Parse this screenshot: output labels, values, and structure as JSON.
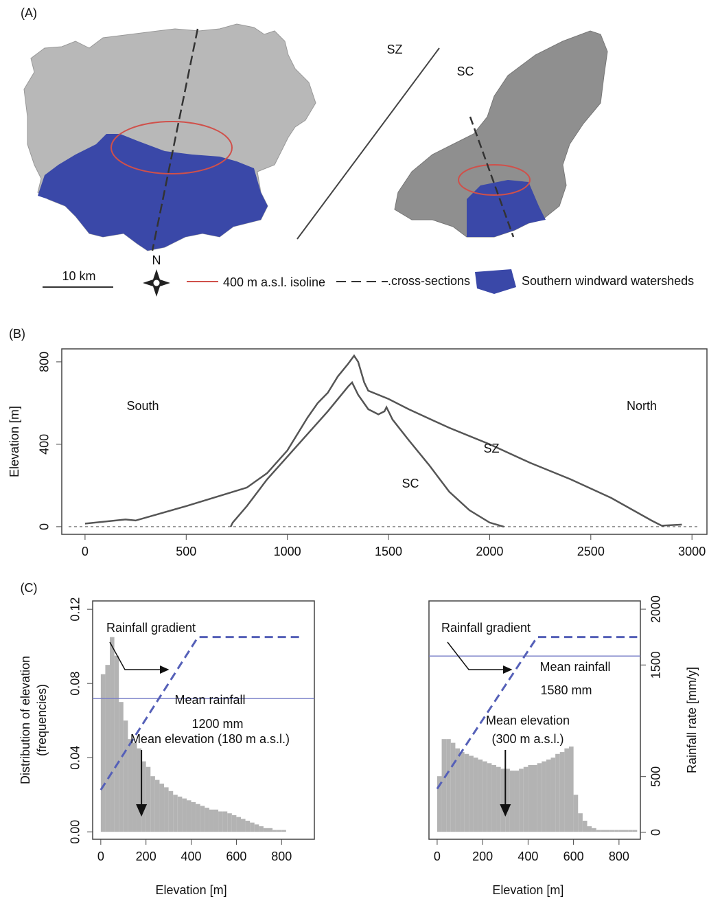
{
  "panel_a": {
    "label": "(A)",
    "map_labels": [
      "SZ",
      "SC"
    ],
    "scale_bar": "10 km",
    "north": "N",
    "legend": [
      "400 m a.s.l. isoline",
      ".cross-sections",
      "Southern windward watersheds"
    ]
  },
  "chart_data": [
    {
      "type": "line",
      "panel_label": "(B)",
      "ylabel": "Elevation [m]",
      "xlim": [
        -115,
        3074
      ],
      "ylim": [
        -37,
        863
      ],
      "xticks": [
        0,
        500,
        1000,
        1500,
        2000,
        2500,
        3000
      ],
      "yticks": [
        0,
        400,
        800
      ],
      "annotations": [
        "South",
        "North"
      ],
      "color": "#555555",
      "series": [
        {
          "name": "SZ",
          "x": [
            0,
            200,
            250,
            500,
            700,
            800,
            900,
            1000,
            1100,
            1150,
            1200,
            1250,
            1300,
            1330,
            1350,
            1380,
            1400,
            1500,
            1600,
            1800,
            2000,
            2200,
            2400,
            2600,
            2800,
            2850,
            2950
          ],
          "values": [
            15,
            35,
            30,
            100,
            160,
            190,
            260,
            370,
            530,
            600,
            650,
            730,
            790,
            830,
            800,
            700,
            660,
            620,
            570,
            480,
            400,
            310,
            230,
            140,
            30,
            5,
            10
          ]
        },
        {
          "name": "SC",
          "x": [
            720,
            730,
            800,
            900,
            1000,
            1100,
            1200,
            1250,
            1300,
            1320,
            1350,
            1400,
            1450,
            1480,
            1490,
            1520,
            1600,
            1700,
            1800,
            1900,
            2000,
            2070
          ],
          "values": [
            0,
            20,
            100,
            230,
            340,
            450,
            560,
            620,
            680,
            700,
            640,
            570,
            545,
            560,
            580,
            520,
            420,
            300,
            170,
            80,
            20,
            0
          ]
        }
      ]
    },
    {
      "type": "histogram",
      "panel_label": "(C)",
      "xlabel": "Elevation [m]",
      "ylabel": [
        "Distribution of elevation",
        "(frequencies)"
      ],
      "color": "#b3b3b3",
      "bins": [
        0,
        20,
        40,
        60,
        80,
        100,
        120,
        140,
        160,
        180,
        200,
        220,
        240,
        260,
        280,
        300,
        320,
        340,
        360,
        380,
        400,
        420,
        440,
        460,
        480,
        500,
        520,
        540,
        560,
        580,
        600,
        620,
        640,
        660,
        680,
        700,
        720,
        740,
        760,
        780,
        800,
        820,
        840,
        860,
        880
      ],
      "values": [
        0.085,
        0.09,
        0.105,
        0.095,
        0.07,
        0.06,
        0.05,
        0.048,
        0.045,
        0.038,
        0.035,
        0.03,
        0.028,
        0.026,
        0.024,
        0.022,
        0.02,
        0.019,
        0.018,
        0.017,
        0.016,
        0.015,
        0.014,
        0.013,
        0.012,
        0.012,
        0.011,
        0.011,
        0.01,
        0.009,
        0.008,
        0.007,
        0.006,
        0.005,
        0.004,
        0.003,
        0.002,
        0.002,
        0.001,
        0.001,
        0.001,
        0,
        0,
        0
      ],
      "xlim": [
        -36,
        945
      ],
      "ylim": [
        -0.004,
        0.1245
      ],
      "y2lim": [
        -62,
        2074
      ],
      "xticks": [
        0,
        200,
        400,
        600,
        800
      ],
      "yticks": [
        {
          "value": 0,
          "label": "0.00"
        },
        {
          "value": 0.04,
          "label": "0.04"
        },
        {
          "value": 0.08,
          "label": "0.08"
        },
        {
          "value": 0.12,
          "label": "0.12"
        }
      ],
      "series": [
        {
          "name": "Rainfall gradient",
          "axis": "y2",
          "color": "#5560b8",
          "x": [
            0,
            430,
            880
          ],
          "values": [
            380,
            1750,
            1750
          ]
        }
      ],
      "mean_rainfall": {
        "value": 1200,
        "title": "Mean rainfall",
        "label": "1200 mm"
      },
      "mean_elevation": {
        "value": 180,
        "label": [
          "Mean elevation (180 m a.s.l.)"
        ]
      }
    },
    {
      "type": "histogram",
      "xlabel": "Elevation [m]",
      "y2label": "Rainfall rate [mm/y]",
      "color": "#b3b3b3",
      "bins": [
        0,
        20,
        40,
        60,
        80,
        100,
        120,
        140,
        160,
        180,
        200,
        220,
        240,
        260,
        280,
        300,
        320,
        340,
        360,
        380,
        400,
        420,
        440,
        460,
        480,
        500,
        520,
        540,
        560,
        580,
        600,
        620,
        640,
        660,
        680,
        700,
        720,
        740,
        760,
        780,
        800,
        820,
        840,
        860,
        880
      ],
      "values": [
        0.03,
        0.05,
        0.05,
        0.048,
        0.045,
        0.043,
        0.042,
        0.041,
        0.04,
        0.039,
        0.038,
        0.037,
        0.036,
        0.035,
        0.034,
        0.034,
        0.033,
        0.033,
        0.034,
        0.035,
        0.036,
        0.036,
        0.037,
        0.038,
        0.039,
        0.04,
        0.042,
        0.043,
        0.045,
        0.046,
        0.02,
        0.01,
        0.006,
        0.003,
        0.002,
        0.001,
        0.001,
        0.001,
        0.001,
        0.001,
        0.001,
        0.001,
        0.001,
        0.001
      ],
      "xlim": [
        -36,
        894
      ],
      "ylim": [
        -0.004,
        0.1245
      ],
      "y2lim": [
        -62,
        2074
      ],
      "xticks": [
        0,
        200,
        400,
        600,
        800
      ],
      "y2ticks": [
        0,
        500,
        1500,
        2000
      ],
      "series": [
        {
          "name": "Rainfall gradient",
          "axis": "y2",
          "color": "#5560b8",
          "x": [
            0,
            440,
            880
          ],
          "values": [
            390,
            1750,
            1750
          ]
        }
      ],
      "mean_rainfall": {
        "value": 1580,
        "title": "Mean rainfall",
        "label": "1580 mm"
      },
      "mean_elevation": {
        "value": 300,
        "label": [
          "Mean elevation",
          "(300 m a.s.l.)"
        ]
      }
    }
  ]
}
